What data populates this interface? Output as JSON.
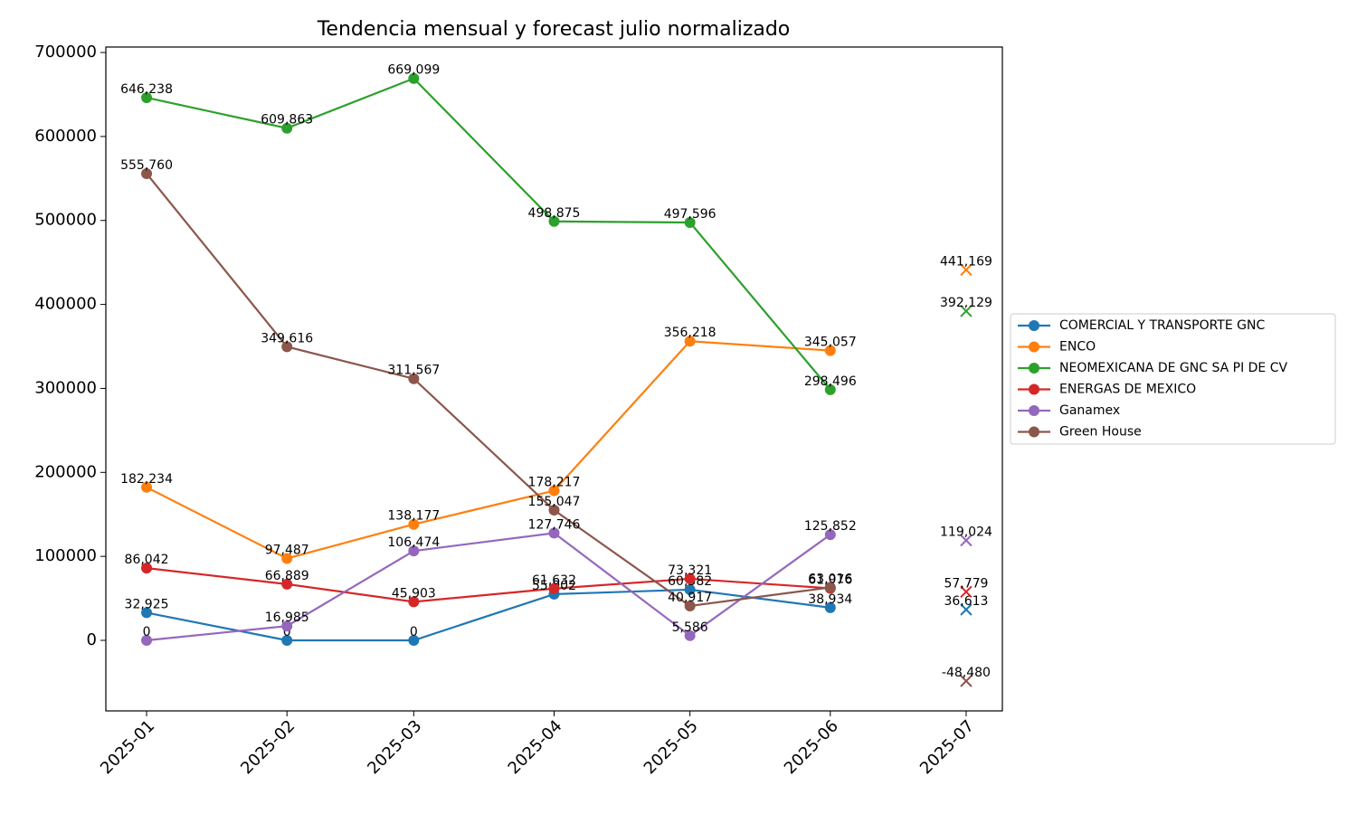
{
  "chart_data": {
    "type": "line",
    "title": "Tendencia mensual y forecast julio normalizado",
    "x": [
      "2025-01",
      "2025-02",
      "2025-03",
      "2025-04",
      "2025-05",
      "2025-06",
      "2025-07"
    ],
    "xlim": [
      "2024-12-23",
      "2025-07-09"
    ],
    "forecast_x": "2025-07",
    "ylim": [
      -84000,
      706500
    ],
    "yticks": [
      0,
      100000,
      200000,
      300000,
      400000,
      500000,
      600000,
      700000
    ],
    "legend": "right",
    "series": [
      {
        "name": "COMERCIAL Y TRANSPORTE GNC",
        "color": "#1f77b4",
        "values": [
          32925,
          0,
          0,
          55002,
          60382,
          38934,
          null
        ],
        "value_labels": [
          "32,925",
          "0",
          "0",
          "55,002",
          "60,382",
          "38,934",
          null
        ],
        "forecast": 36613,
        "forecast_label": "36,613"
      },
      {
        "name": "ENCO",
        "color": "#ff7f0e",
        "values": [
          182234,
          97487,
          138177,
          178217,
          356218,
          345057,
          null
        ],
        "value_labels": [
          "182,234",
          "97,487",
          "138,177",
          "178,217",
          "356,218",
          "345,057",
          null
        ],
        "forecast": 441169,
        "forecast_label": "441,169"
      },
      {
        "name": "NEOMEXICANA DE GNC SA PI DE CV",
        "color": "#2ca02c",
        "values": [
          646238,
          609863,
          669099,
          498875,
          497596,
          298496,
          null
        ],
        "value_labels": [
          "646,238",
          "609,863",
          "669,099",
          "498,875",
          "497,596",
          "298,496",
          null
        ],
        "forecast": 392129,
        "forecast_label": "392,129"
      },
      {
        "name": "ENERGAS DE MEXICO",
        "color": "#d62728",
        "values": [
          86042,
          66889,
          45903,
          61632,
          73321,
          61976,
          null
        ],
        "value_labels": [
          "86,042",
          "66,889",
          "45,903",
          "61,632",
          "73,321",
          "61,976",
          null
        ],
        "forecast": 57779,
        "forecast_label": "57,779"
      },
      {
        "name": "Ganamex",
        "color": "#9467bd",
        "values": [
          0,
          16985,
          106474,
          127746,
          5586,
          125852,
          null
        ],
        "value_labels": [
          "0",
          "16,985",
          "106,474",
          "127,746",
          "5,586",
          "125,852",
          null
        ],
        "forecast": 119024,
        "forecast_label": "119,024"
      },
      {
        "name": "Green House",
        "color": "#8c564b",
        "values": [
          555760,
          349616,
          311567,
          155047,
          40917,
          63016,
          null
        ],
        "value_labels": [
          "555,760",
          "349,616",
          "311,567",
          "155,047",
          "40,917",
          "63,016",
          null
        ],
        "forecast": -48480,
        "forecast_label": "-48,480"
      }
    ]
  }
}
